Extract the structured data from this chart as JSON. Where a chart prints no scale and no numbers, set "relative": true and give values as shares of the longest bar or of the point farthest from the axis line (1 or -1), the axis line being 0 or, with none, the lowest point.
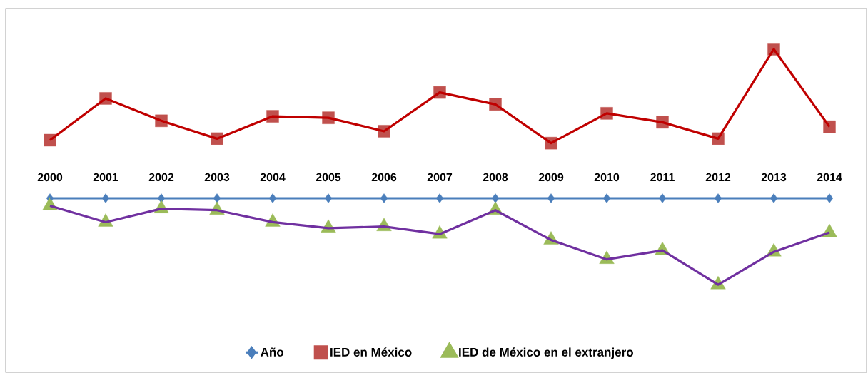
{
  "chart_data": {
    "type": "line",
    "relative": true,
    "legend": "bottom",
    "line_style": "solid",
    "categories": [
      "2000",
      "2001",
      "2002",
      "2003",
      "2004",
      "2005",
      "2006",
      "2007",
      "2008",
      "2009",
      "2010",
      "2011",
      "2012",
      "2013",
      "2014"
    ],
    "series": [
      {
        "name": "Año",
        "marker": "diamond",
        "color": "#4a7ebb",
        "colors": [
          "#4a7ebb",
          "#4a7ebb",
          "#4a7ebb",
          "#4a7ebb",
          "#4a7ebb",
          "#4a7ebb",
          "#4a7ebb",
          "#4a7ebb",
          "#4a7ebb",
          "#4a7ebb",
          "#4a7ebb",
          "#4a7ebb",
          "#4a7ebb",
          "#4a7ebb",
          "#4a7ebb"
        ],
        "values": [
          0,
          0,
          0,
          0,
          0,
          0,
          0,
          0,
          0,
          0,
          0,
          0,
          0,
          0,
          0
        ]
      },
      {
        "name": "IED en México",
        "marker": "square",
        "color": "#c00000",
        "colors": [
          "#c0504d",
          "#c0504d",
          "#c0504d",
          "#c0504d",
          "#c0504d",
          "#c0504d",
          "#c0504d",
          "#c0504d",
          "#c0504d",
          "#c0504d",
          "#c0504d",
          "#c0504d",
          "#c0504d",
          "#c0504d",
          "#c0504d"
        ],
        "values": [
          0.39,
          0.67,
          0.52,
          0.4,
          0.55,
          0.54,
          0.45,
          0.71,
          0.63,
          0.37,
          0.57,
          0.51,
          0.4,
          1,
          0.48
        ]
      },
      {
        "name": "IED de México en el extranjero",
        "marker": "triangle",
        "color": "#7030a0",
        "colors": [
          "#9bbb59",
          "#9bbb59",
          "#9bbb59",
          "#9bbb59",
          "#9bbb59",
          "#9bbb59",
          "#9bbb59",
          "#9bbb59",
          "#9bbb59",
          "#9bbb59",
          "#9bbb59",
          "#9bbb59",
          "#9bbb59",
          "#9bbb59",
          "#9bbb59"
        ],
        "values": [
          -0.05,
          -0.16,
          -0.07,
          -0.08,
          -0.16,
          -0.2,
          -0.19,
          -0.24,
          -0.08,
          -0.28,
          -0.41,
          -0.35,
          -0.58,
          -0.36,
          -0.23
        ]
      }
    ]
  }
}
